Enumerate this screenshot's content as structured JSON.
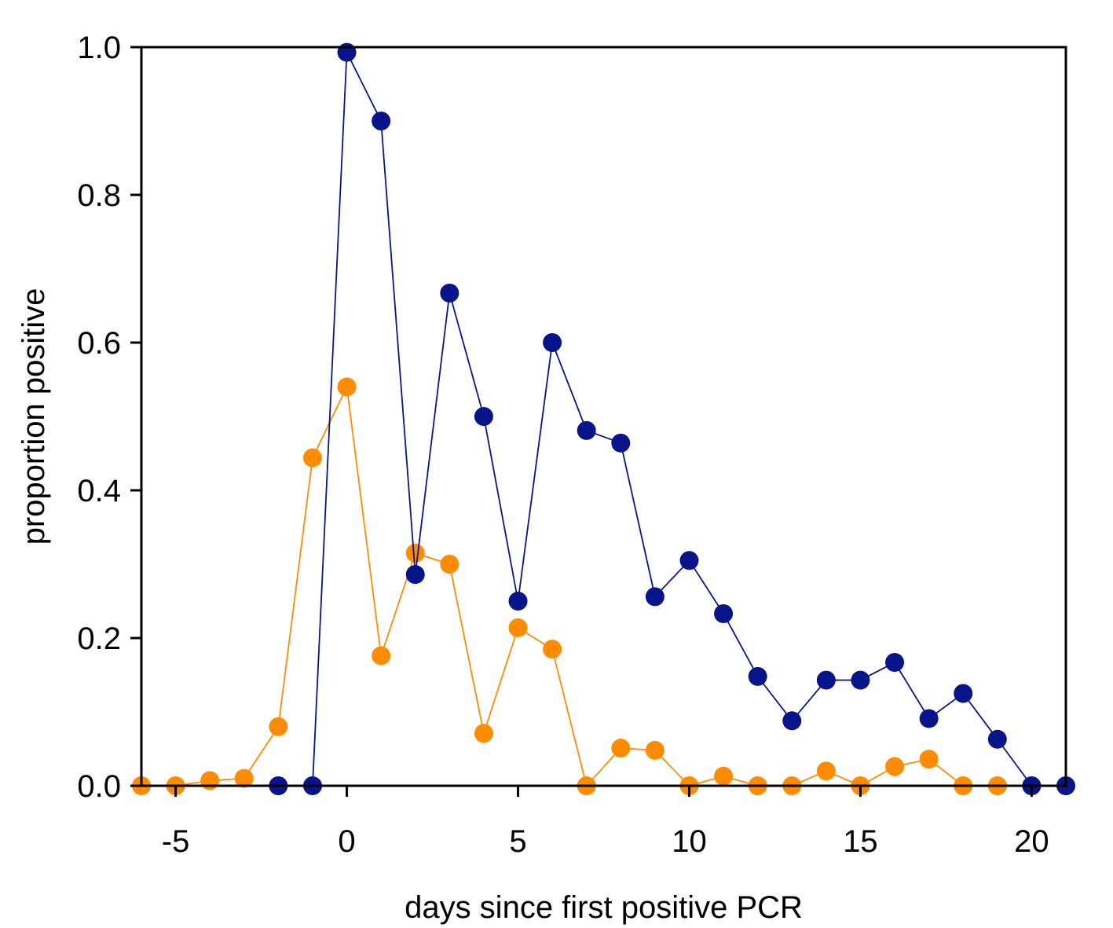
{
  "chart_data": {
    "type": "line",
    "title": "",
    "xlabel": "days since first positive PCR",
    "ylabel": "proportion positive",
    "xlim": [
      -6,
      21
    ],
    "ylim": [
      0,
      1
    ],
    "x_ticks": [
      -5,
      0,
      5,
      10,
      15,
      20
    ],
    "y_ticks": [
      0,
      0.2,
      0.4,
      0.6,
      0.8,
      1
    ],
    "x_tick_labels": [
      "-5",
      "0",
      "5",
      "10",
      "15",
      "20"
    ],
    "y_tick_labels": [
      "0.0",
      "0.2",
      "0.4",
      "0.6",
      "0.8",
      "1.0"
    ],
    "grid": false,
    "legend": "none",
    "series": [
      {
        "color": "#08158a",
        "x": [
          -2,
          -1,
          0,
          1,
          2,
          3,
          4,
          5,
          6,
          7,
          8,
          9,
          10,
          11,
          12,
          13,
          14,
          15,
          16,
          17,
          18,
          19,
          20,
          21
        ],
        "y": [
          0.0,
          0.0,
          0.993,
          0.9,
          0.286,
          0.667,
          0.5,
          0.25,
          0.6,
          0.481,
          0.464,
          0.256,
          0.305,
          0.233,
          0.148,
          0.088,
          0.143,
          0.143,
          0.167,
          0.091,
          0.125,
          0.063,
          0.0,
          0.0
        ]
      },
      {
        "color": "#ff8c00",
        "x": [
          -6,
          -5,
          -4,
          -3,
          -2,
          -1,
          0,
          1,
          2,
          3,
          4,
          5,
          6,
          7,
          8,
          9,
          10,
          11,
          12,
          13,
          14,
          15,
          16,
          17,
          18,
          19,
          20,
          21
        ],
        "y": [
          0.0,
          0.0,
          0.007,
          0.01,
          0.08,
          0.444,
          0.54,
          0.176,
          0.315,
          0.3,
          0.071,
          0.214,
          0.185,
          0.0,
          0.051,
          0.048,
          0.0,
          0.013,
          0.0,
          0.0,
          0.02,
          0.0,
          0.026,
          0.036,
          0.0,
          0.0,
          0.0,
          0.0
        ]
      }
    ]
  }
}
